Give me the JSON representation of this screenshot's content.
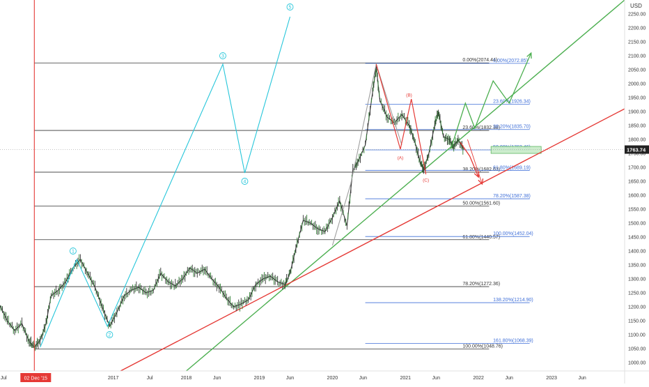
{
  "chart_data": {
    "type": "line",
    "title": "",
    "currency_label": "USD",
    "last_price_label": "1763.74",
    "last_price": 1763.74,
    "cursor_date_label": "02 Dec '15",
    "ylim": [
      970,
      2300
    ],
    "xlim": [
      2015.45,
      2024.0
    ],
    "cursor_date": 2015.92,
    "y_ticks": [
      "2250.00",
      "2200.00",
      "2150.00",
      "2100.00",
      "2050.00",
      "2000.00",
      "1950.00",
      "1900.00",
      "1850.00",
      "1800.00",
      "1750.00",
      "1700.00",
      "1650.00",
      "1600.00",
      "1550.00",
      "1500.00",
      "1450.00",
      "1400.00",
      "1350.00",
      "1300.00",
      "1250.00",
      "1200.00",
      "1150.00",
      "1100.00",
      "1050.00",
      "1000.00"
    ],
    "y_tick_values": [
      2250,
      2200,
      2150,
      2100,
      2050,
      2000,
      1950,
      1900,
      1850,
      1800,
      1750,
      1700,
      1650,
      1600,
      1550,
      1500,
      1450,
      1400,
      1350,
      1300,
      1250,
      1200,
      1150,
      1100,
      1050,
      1000
    ],
    "x_ticks": [
      {
        "label": "Jul",
        "t": 2015.5
      },
      {
        "label": "2017",
        "t": 2017.0
      },
      {
        "label": "Jul",
        "t": 2017.5
      },
      {
        "label": "2018",
        "t": 2018.0
      },
      {
        "label": "Jun",
        "t": 2018.42
      },
      {
        "label": "2019",
        "t": 2019.0
      },
      {
        "label": "Jun",
        "t": 2019.42
      },
      {
        "label": "2020",
        "t": 2020.0
      },
      {
        "label": "Jun",
        "t": 2020.42
      },
      {
        "label": "2021",
        "t": 2021.0
      },
      {
        "label": "Jun",
        "t": 2021.42
      },
      {
        "label": "2022",
        "t": 2022.0
      },
      {
        "label": "Jun",
        "t": 2022.42
      },
      {
        "label": "2023",
        "t": 2023.0
      },
      {
        "label": "Jun",
        "t": 2023.42
      }
    ],
    "price_series": [
      [
        2015.45,
        1205
      ],
      [
        2015.55,
        1150
      ],
      [
        2015.65,
        1115
      ],
      [
        2015.75,
        1140
      ],
      [
        2015.85,
        1075
      ],
      [
        2015.92,
        1055
      ],
      [
        2016.0,
        1080
      ],
      [
        2016.08,
        1140
      ],
      [
        2016.15,
        1240
      ],
      [
        2016.25,
        1260
      ],
      [
        2016.35,
        1290
      ],
      [
        2016.45,
        1340
      ],
      [
        2016.55,
        1370
      ],
      [
        2016.65,
        1320
      ],
      [
        2016.75,
        1270
      ],
      [
        2016.85,
        1200
      ],
      [
        2016.95,
        1130
      ],
      [
        2017.05,
        1180
      ],
      [
        2017.15,
        1240
      ],
      [
        2017.25,
        1260
      ],
      [
        2017.35,
        1270
      ],
      [
        2017.45,
        1250
      ],
      [
        2017.55,
        1260
      ],
      [
        2017.65,
        1320
      ],
      [
        2017.75,
        1290
      ],
      [
        2017.85,
        1275
      ],
      [
        2017.95,
        1300
      ],
      [
        2018.05,
        1340
      ],
      [
        2018.15,
        1320
      ],
      [
        2018.25,
        1335
      ],
      [
        2018.35,
        1300
      ],
      [
        2018.45,
        1270
      ],
      [
        2018.55,
        1230
      ],
      [
        2018.65,
        1200
      ],
      [
        2018.75,
        1210
      ],
      [
        2018.85,
        1225
      ],
      [
        2018.95,
        1280
      ],
      [
        2019.05,
        1300
      ],
      [
        2019.15,
        1310
      ],
      [
        2019.25,
        1290
      ],
      [
        2019.35,
        1280
      ],
      [
        2019.42,
        1320
      ],
      [
        2019.5,
        1410
      ],
      [
        2019.6,
        1510
      ],
      [
        2019.7,
        1500
      ],
      [
        2019.8,
        1480
      ],
      [
        2019.9,
        1470
      ],
      [
        2020.0,
        1520
      ],
      [
        2020.1,
        1580
      ],
      [
        2020.2,
        1490
      ],
      [
        2020.28,
        1690
      ],
      [
        2020.35,
        1720
      ],
      [
        2020.45,
        1780
      ],
      [
        2020.55,
        1970
      ],
      [
        2020.6,
        2060
      ],
      [
        2020.65,
        1940
      ],
      [
        2020.75,
        1880
      ],
      [
        2020.85,
        1860
      ],
      [
        2020.95,
        1890
      ],
      [
        2021.05,
        1850
      ],
      [
        2021.12,
        1800
      ],
      [
        2021.2,
        1720
      ],
      [
        2021.25,
        1690
      ],
      [
        2021.32,
        1750
      ],
      [
        2021.4,
        1850
      ],
      [
        2021.45,
        1900
      ],
      [
        2021.52,
        1810
      ],
      [
        2021.6,
        1800
      ],
      [
        2021.65,
        1770
      ],
      [
        2021.72,
        1800
      ],
      [
        2021.8,
        1763.74
      ]
    ],
    "blue_zigzag": [
      [
        2016.0,
        1055
      ],
      [
        2016.5,
        1370
      ],
      [
        2016.92,
        1130
      ],
      [
        2018.5,
        2070
      ],
      [
        2018.8,
        1680
      ],
      [
        2019.42,
        2240
      ]
    ],
    "wave_labels": [
      {
        "label": "1",
        "t": 2016.45,
        "v": 1400,
        "color": "#26c6da"
      },
      {
        "label": "2",
        "t": 2016.95,
        "v": 1100,
        "color": "#26c6da"
      },
      {
        "label": "3",
        "t": 2018.5,
        "v": 2100,
        "color": "#26c6da"
      },
      {
        "label": "4",
        "t": 2018.8,
        "v": 1650,
        "color": "#26c6da"
      },
      {
        "label": "5",
        "t": 2019.42,
        "v": 2275,
        "color": "#26c6da"
      },
      {
        "label": "(A)",
        "t": 2020.93,
        "v": 1735,
        "color": "#e53935"
      },
      {
        "label": "(B)",
        "t": 2021.05,
        "v": 1960,
        "color": "#e53935"
      },
      {
        "label": "(C)",
        "t": 2021.28,
        "v": 1655,
        "color": "#e53935"
      }
    ],
    "red_zigzag": [
      [
        2020.6,
        2070
      ],
      [
        2020.93,
        1765
      ],
      [
        2021.08,
        1945
      ],
      [
        2021.28,
        1675
      ]
    ],
    "grey_zigzag": [
      [
        2020.0,
        1420
      ],
      [
        2020.25,
        1640
      ],
      [
        2020.6,
        2070
      ],
      [
        2020.95,
        1780
      ]
    ],
    "green_forecast": [
      [
        2021.62,
        1765
      ],
      [
        2021.82,
        1930
      ],
      [
        2021.95,
        1840
      ],
      [
        2022.2,
        2010
      ],
      [
        2022.42,
        1930
      ],
      [
        2022.72,
        2110
      ]
    ],
    "red_forecast_1": [
      [
        2021.75,
        1790
      ],
      [
        2021.88,
        1740
      ],
      [
        2022.0,
        1665
      ]
    ],
    "red_forecast_2": [
      [
        2021.85,
        1800
      ],
      [
        2022.05,
        1640
      ]
    ],
    "green_trendline": [
      [
        2018.0,
        970
      ],
      [
        2024.0,
        2300
      ]
    ],
    "red_trendline": [
      [
        2017.1,
        970
      ],
      [
        2024.0,
        1910
      ]
    ],
    "fib_left": [
      {
        "label": "0.00%(2074.44)",
        "v": 2074.44
      },
      {
        "label": "23.60%(1832.38)",
        "v": 1832.38
      },
      {
        "label": "38.20%(1682.63)",
        "v": 1682.63
      },
      {
        "label": "50.00%(1561.60)",
        "v": 1561.6
      },
      {
        "label": "61.80%(1440.57)",
        "v": 1440.57
      },
      {
        "label": "78.20%(1272.36)",
        "v": 1272.36
      },
      {
        "label": "100.00%(1048.76)",
        "v": 1048.76
      }
    ],
    "fib_right": [
      {
        "label": "0.00%(2072.85)",
        "v": 2072.85
      },
      {
        "label": "23.60%(1926.34)",
        "v": 1926.34
      },
      {
        "label": "38.20%(1835.70)",
        "v": 1835.7
      },
      {
        "label": "50.00%(1762.46)",
        "v": 1762.46
      },
      {
        "label": "61.80%(1689.19)",
        "v": 1689.19
      },
      {
        "label": "78.20%(1587.38)",
        "v": 1587.38
      },
      {
        "label": "100.00%(1452.04)",
        "v": 1452.04
      },
      {
        "label": "138.20%(1214.90)",
        "v": 1214.9
      },
      {
        "label": "161.80%(1068.39)",
        "v": 1068.39
      }
    ],
    "colors": {
      "price": "#3a3a3a",
      "blue_wave": "#26c6da",
      "fib_left": "#333333",
      "fib_right": "#3f6fd8",
      "green": "#4caf50",
      "red": "#e53935",
      "grey": "#9e9e9e",
      "highlight_fill": "#c8ecc8",
      "price_tag_bg": "#212121"
    },
    "grid": false,
    "legend": "none"
  }
}
